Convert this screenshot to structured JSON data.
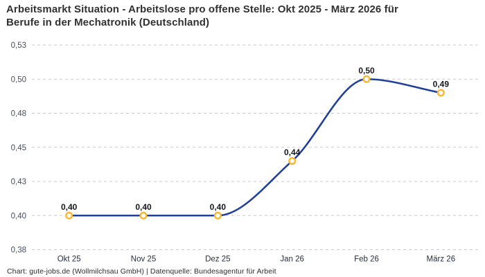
{
  "header": {
    "title": "Arbeitsmarkt Situation - Arbeitslose pro offene Stelle: Okt 2025 - März 2026 für\nBerufe in der Mechatronik (Deutschland)"
  },
  "footer": {
    "credit": "Chart: gute-jobs.de (Wollmilchsau GmbH) | Datenquelle: Bundesagentur für Arbeit"
  },
  "chart_data": {
    "type": "line",
    "title": "Arbeitsmarkt Situation - Arbeitslose pro offene Stelle: Okt 2025 - März 2026 für Berufe in der Mechatronik (Deutschland)",
    "categories": [
      "Okt 25",
      "Nov 25",
      "Dez 25",
      "Jan 26",
      "Feb 26",
      "März 26"
    ],
    "values": [
      0.4,
      0.4,
      0.4,
      0.44,
      0.5,
      0.49
    ],
    "point_labels": [
      "0,40",
      "0,40",
      "0,40",
      "0,44",
      "0,50",
      "0,49"
    ],
    "xlabel": "",
    "ylabel": "",
    "ylim": [
      0.375,
      0.525
    ],
    "y_ticks": [
      {
        "value": 0.525,
        "label": "0,53"
      },
      {
        "value": 0.5,
        "label": "0,50"
      },
      {
        "value": 0.475,
        "label": "0,48"
      },
      {
        "value": 0.45,
        "label": "0,45"
      },
      {
        "value": 0.425,
        "label": "0,43"
      },
      {
        "value": 0.4,
        "label": "0,40"
      },
      {
        "value": 0.375,
        "label": "0,38"
      }
    ],
    "grid": "horizontal-dashed",
    "legend": "none",
    "curve": "smooth-monotone",
    "line_color": "#21409E",
    "marker_color": "#FBB72C",
    "marker_fill": "#FFFFFF",
    "grid_color": "#CBCBCB",
    "label_color": "#15171D"
  }
}
